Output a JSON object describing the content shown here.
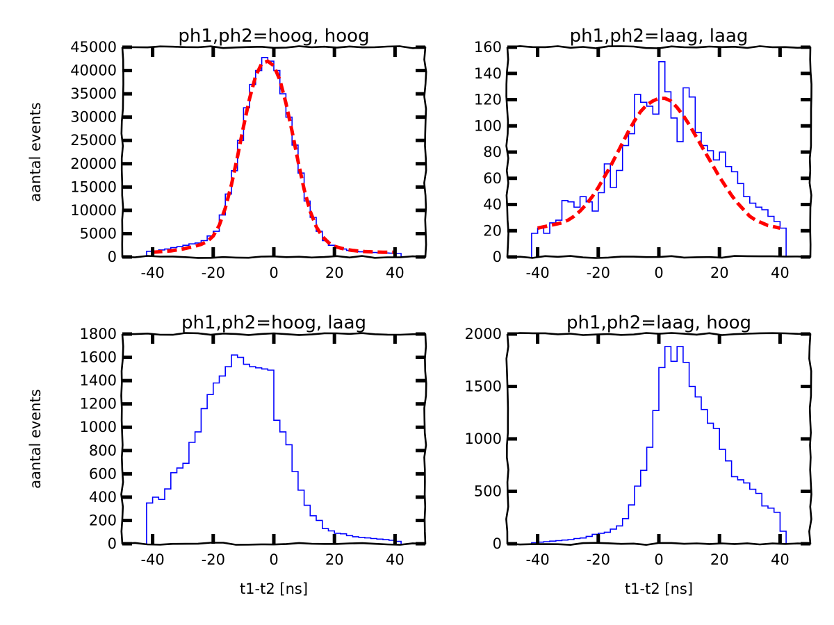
{
  "chart_data": [
    {
      "type": "line",
      "title": "ph1,ph2=hoog, hoog",
      "xlabel": "",
      "ylabel": "aantal events",
      "xlim": [
        -50,
        50
      ],
      "ylim": [
        0,
        45000
      ],
      "xticks": [
        -40,
        -20,
        0,
        20,
        40
      ],
      "yticks": [
        0,
        5000,
        10000,
        15000,
        20000,
        25000,
        30000,
        35000,
        40000,
        45000
      ],
      "series": [
        {
          "kind": "histogram-step",
          "color": "#0000ff",
          "edges": [
            -42,
            -40,
            -38,
            -36,
            -34,
            -32,
            -30,
            -28,
            -26,
            -24,
            -22,
            -20,
            -18,
            -16,
            -14,
            -12,
            -10,
            -8,
            -6,
            -4,
            -2,
            0,
            2,
            4,
            6,
            8,
            10,
            12,
            14,
            16,
            18,
            20,
            22,
            24,
            26,
            28,
            30,
            32,
            34,
            36,
            38,
            40,
            42
          ],
          "counts": [
            1200,
            1300,
            1500,
            1700,
            2000,
            2200,
            2500,
            2800,
            3000,
            3500,
            4500,
            5500,
            9000,
            13500,
            18500,
            25000,
            32000,
            37000,
            40000,
            42800,
            42000,
            40000,
            35000,
            30000,
            24000,
            18000,
            12000,
            8500,
            5500,
            3500,
            2500,
            2000,
            1700,
            1400,
            1200,
            1100,
            1000,
            950,
            900,
            850,
            800,
            750
          ]
        },
        {
          "kind": "fit",
          "color": "#ff0000",
          "x": [
            -40,
            -38,
            -36,
            -34,
            -32,
            -30,
            -28,
            -26,
            -24,
            -22,
            -20,
            -18,
            -16,
            -14,
            -12,
            -10,
            -8,
            -6,
            -4,
            -2,
            0,
            2,
            4,
            6,
            8,
            10,
            12,
            14,
            16,
            18,
            20,
            22,
            24,
            26,
            28,
            30,
            32,
            34,
            36,
            38,
            40
          ],
          "y": [
            1000,
            1100,
            1200,
            1300,
            1500,
            1700,
            2000,
            2300,
            2700,
            3300,
            4500,
            6800,
            10500,
            15500,
            21500,
            28000,
            34000,
            38800,
            41500,
            42000,
            41000,
            38000,
            33000,
            27000,
            20500,
            14500,
            9800,
            6500,
            4400,
            3100,
            2300,
            1900,
            1600,
            1400,
            1250,
            1150,
            1100,
            1050,
            1000,
            1000,
            1000
          ]
        }
      ]
    },
    {
      "type": "line",
      "title": "ph1,ph2=laag, laag",
      "xlabel": "",
      "ylabel": "",
      "xlim": [
        -50,
        50
      ],
      "ylim": [
        0,
        160
      ],
      "xticks": [
        -40,
        -20,
        0,
        20,
        40
      ],
      "yticks": [
        0,
        20,
        40,
        60,
        80,
        100,
        120,
        140,
        160
      ],
      "series": [
        {
          "kind": "histogram-step",
          "color": "#0000ff",
          "edges": [
            -42,
            -40,
            -38,
            -36,
            -34,
            -32,
            -30,
            -28,
            -26,
            -24,
            -22,
            -20,
            -18,
            -16,
            -14,
            -12,
            -10,
            -8,
            -6,
            -4,
            -2,
            0,
            2,
            4,
            6,
            8,
            10,
            12,
            14,
            16,
            18,
            20,
            22,
            24,
            26,
            28,
            30,
            32,
            34,
            36,
            38,
            40,
            42
          ],
          "counts": [
            18,
            22,
            18,
            26,
            28,
            43,
            42,
            38,
            46,
            42,
            35,
            49,
            71,
            53,
            66,
            85,
            94,
            124,
            118,
            115,
            109,
            149,
            126,
            106,
            88,
            129,
            122,
            95,
            85,
            81,
            74,
            80,
            69,
            65,
            56,
            46,
            41,
            38,
            36,
            31,
            27,
            22
          ]
        },
        {
          "kind": "fit",
          "color": "#ff0000",
          "x": [
            -40,
            -38,
            -36,
            -34,
            -32,
            -30,
            -28,
            -26,
            -24,
            -22,
            -20,
            -18,
            -16,
            -14,
            -12,
            -10,
            -8,
            -6,
            -4,
            -2,
            0,
            2,
            4,
            6,
            8,
            10,
            12,
            14,
            16,
            18,
            20,
            22,
            24,
            26,
            28,
            30,
            32,
            34,
            36,
            38,
            40
          ],
          "y": [
            22,
            23,
            24,
            25,
            26,
            28,
            31,
            35,
            40,
            46,
            53,
            61,
            69,
            78,
            87,
            96,
            104,
            111,
            116,
            119,
            121,
            121,
            119,
            114,
            108,
            101,
            93,
            85,
            77,
            69,
            61,
            54,
            47,
            41,
            36,
            31,
            28,
            26,
            24,
            23,
            22
          ]
        }
      ]
    },
    {
      "type": "line",
      "title": "ph1,ph2=hoog, laag",
      "xlabel": "t1-t2 [ns]",
      "ylabel": "aantal events",
      "xlim": [
        -50,
        50
      ],
      "ylim": [
        0,
        1800
      ],
      "xticks": [
        -40,
        -20,
        0,
        20,
        40
      ],
      "yticks": [
        0,
        200,
        400,
        600,
        800,
        1000,
        1200,
        1400,
        1600,
        1800
      ],
      "series": [
        {
          "kind": "histogram-step",
          "color": "#0000ff",
          "edges": [
            -42,
            -40,
            -38,
            -36,
            -34,
            -32,
            -30,
            -28,
            -26,
            -24,
            -22,
            -20,
            -18,
            -16,
            -14,
            -12,
            -10,
            -8,
            -6,
            -4,
            -2,
            0,
            2,
            4,
            6,
            8,
            10,
            12,
            14,
            16,
            18,
            20,
            22,
            24,
            26,
            28,
            30,
            32,
            34,
            36,
            38,
            40,
            42
          ],
          "counts": [
            350,
            400,
            380,
            470,
            610,
            650,
            690,
            870,
            960,
            1160,
            1280,
            1380,
            1440,
            1520,
            1620,
            1600,
            1540,
            1520,
            1510,
            1500,
            1490,
            1060,
            960,
            850,
            620,
            460,
            330,
            240,
            200,
            130,
            110,
            90,
            85,
            70,
            60,
            55,
            50,
            45,
            40,
            35,
            30,
            20
          ]
        }
      ]
    },
    {
      "type": "line",
      "title": "ph1,ph2=laag, hoog",
      "xlabel": "t1-t2 [ns]",
      "ylabel": "",
      "xlim": [
        -50,
        50
      ],
      "ylim": [
        0,
        2000
      ],
      "xticks": [
        -40,
        -20,
        0,
        20,
        40
      ],
      "yticks": [
        0,
        500,
        1000,
        1500,
        2000
      ],
      "series": [
        {
          "kind": "histogram-step",
          "color": "#0000ff",
          "edges": [
            -42,
            -40,
            -38,
            -36,
            -34,
            -32,
            -30,
            -28,
            -26,
            -24,
            -22,
            -20,
            -18,
            -16,
            -14,
            -12,
            -10,
            -8,
            -6,
            -4,
            -2,
            0,
            2,
            4,
            6,
            8,
            10,
            12,
            14,
            16,
            18,
            20,
            22,
            24,
            26,
            28,
            30,
            32,
            34,
            36,
            38,
            40,
            42
          ],
          "counts": [
            10,
            15,
            20,
            25,
            30,
            35,
            40,
            50,
            55,
            70,
            90,
            100,
            110,
            140,
            170,
            240,
            370,
            550,
            700,
            920,
            1270,
            1680,
            1880,
            1740,
            1880,
            1730,
            1500,
            1400,
            1280,
            1150,
            1100,
            900,
            790,
            640,
            610,
            580,
            520,
            480,
            360,
            340,
            300,
            120
          ]
        }
      ]
    }
  ]
}
